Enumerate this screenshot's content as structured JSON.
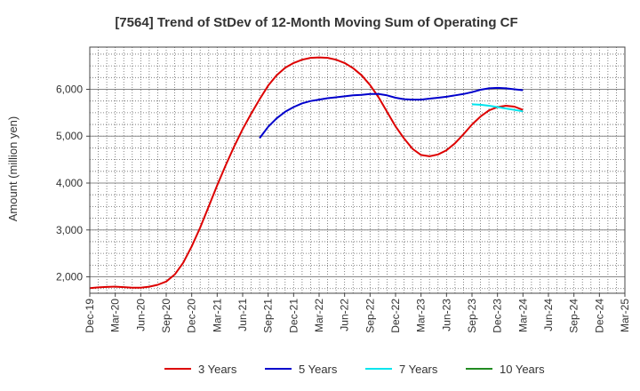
{
  "chart_data": {
    "type": "line",
    "title": "[7564]  Trend of StDev of 12-Month Moving Sum of Operating CF",
    "xlabel": "",
    "ylabel": "Amount (million yen)",
    "ylim": [
      1650,
      6900
    ],
    "yticks": [
      2000,
      3000,
      4000,
      5000,
      6000
    ],
    "ytick_labels": [
      "2,000",
      "3,000",
      "4,000",
      "5,000",
      "6,000"
    ],
    "xlim": [
      "2019-12",
      "2025-03"
    ],
    "xtick_labels": [
      "Dec-19",
      "Mar-20",
      "Jun-20",
      "Sep-20",
      "Dec-20",
      "Mar-21",
      "Jun-21",
      "Sep-21",
      "Dec-21",
      "Mar-22",
      "Jun-22",
      "Sep-22",
      "Dec-22",
      "Mar-23",
      "Jun-23",
      "Sep-23",
      "Dec-23",
      "Mar-24",
      "Jun-24",
      "Sep-24",
      "Dec-24",
      "Mar-25"
    ],
    "grid": true,
    "legend_position": "bottom",
    "series": [
      {
        "name": "3 Years",
        "color": "#dd0000",
        "x": [
          "2019-12",
          "2020-01",
          "2020-02",
          "2020-03",
          "2020-04",
          "2020-05",
          "2020-06",
          "2020-07",
          "2020-08",
          "2020-09",
          "2020-10",
          "2020-11",
          "2020-12",
          "2021-01",
          "2021-02",
          "2021-03",
          "2021-04",
          "2021-05",
          "2021-06",
          "2021-07",
          "2021-08",
          "2021-09",
          "2021-10",
          "2021-11",
          "2021-12",
          "2022-01",
          "2022-02",
          "2022-03",
          "2022-04",
          "2022-05",
          "2022-06",
          "2022-07",
          "2022-08",
          "2022-09",
          "2022-10",
          "2022-11",
          "2022-12",
          "2023-01",
          "2023-02",
          "2023-03",
          "2023-04",
          "2023-05",
          "2023-06",
          "2023-07",
          "2023-08",
          "2023-09",
          "2023-10",
          "2023-11",
          "2023-12",
          "2024-01",
          "2024-02",
          "2024-03"
        ],
        "values": [
          1760,
          1775,
          1785,
          1790,
          1780,
          1770,
          1770,
          1790,
          1830,
          1900,
          2050,
          2300,
          2650,
          3050,
          3500,
          3950,
          4380,
          4780,
          5150,
          5480,
          5790,
          6080,
          6300,
          6460,
          6560,
          6630,
          6670,
          6680,
          6670,
          6630,
          6560,
          6450,
          6300,
          6090,
          5830,
          5520,
          5210,
          4950,
          4730,
          4600,
          4570,
          4610,
          4700,
          4850,
          5040,
          5250,
          5420,
          5550,
          5620,
          5650,
          5630,
          5560
        ]
      },
      {
        "name": "5 Years",
        "color": "#0000cc",
        "x": [
          "2021-08",
          "2021-09",
          "2021-10",
          "2021-11",
          "2021-12",
          "2022-01",
          "2022-02",
          "2022-03",
          "2022-04",
          "2022-05",
          "2022-06",
          "2022-07",
          "2022-08",
          "2022-09",
          "2022-10",
          "2022-11",
          "2022-12",
          "2023-01",
          "2023-02",
          "2023-03",
          "2023-04",
          "2023-05",
          "2023-06",
          "2023-07",
          "2023-08",
          "2023-09",
          "2023-10",
          "2023-11",
          "2023-12",
          "2024-01",
          "2024-02",
          "2024-03"
        ],
        "values": [
          4960,
          5200,
          5380,
          5520,
          5620,
          5700,
          5750,
          5780,
          5810,
          5830,
          5850,
          5870,
          5880,
          5900,
          5900,
          5870,
          5820,
          5790,
          5780,
          5780,
          5800,
          5820,
          5840,
          5870,
          5900,
          5940,
          5990,
          6020,
          6030,
          6020,
          6000,
          5980
        ]
      },
      {
        "name": "7 Years",
        "color": "#00e5ee",
        "x": [
          "2023-09",
          "2023-10",
          "2023-11",
          "2023-12",
          "2024-01",
          "2024-02",
          "2024-03"
        ],
        "values": [
          5680,
          5670,
          5650,
          5620,
          5590,
          5560,
          5530
        ]
      },
      {
        "name": "10 Years",
        "color": "#228b22",
        "x": [],
        "values": []
      }
    ]
  }
}
